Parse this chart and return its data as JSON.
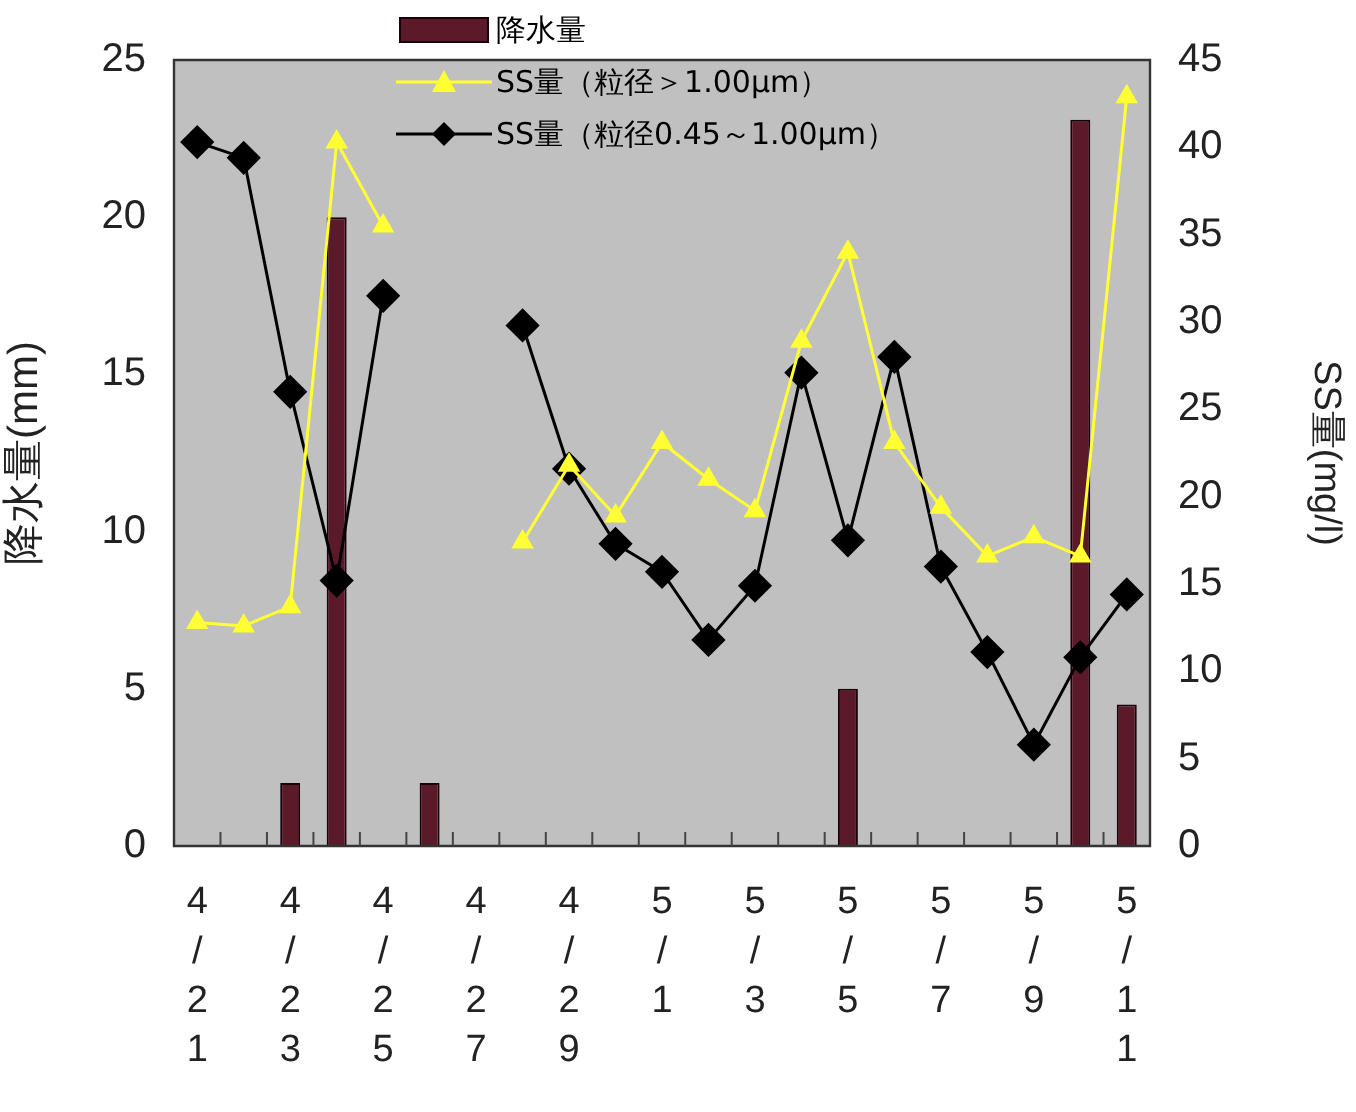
{
  "chart_data": {
    "type": "bar",
    "ylabel": "降水量(mm)",
    "y2label": "SS量(mg/l)",
    "categories": [
      "4/21",
      null,
      "4/23",
      null,
      "4/25",
      null,
      "4/27",
      null,
      "4/29",
      null,
      "5/1",
      null,
      "5/3",
      null,
      "5/5",
      null,
      "5/7",
      null,
      "5/9",
      null,
      "5/11"
    ],
    "ylim": [
      0,
      25
    ],
    "yticks": [
      0,
      5,
      10,
      15,
      20,
      25
    ],
    "y2lim": [
      0,
      45
    ],
    "y2ticks": [
      0,
      5,
      10,
      15,
      20,
      25,
      30,
      35,
      40,
      45
    ],
    "grid": false,
    "legend": "top",
    "series": [
      {
        "name": "降水量",
        "color": "#5a1a2a",
        "values": [
          null,
          null,
          2,
          20,
          null,
          2,
          null,
          null,
          null,
          null,
          null,
          null,
          null,
          null,
          5,
          null,
          null,
          null,
          null,
          23.1,
          4.5
        ]
      },
      {
        "name": "SS量（粒径＞1.00μm）",
        "type": "line",
        "axis": "y2",
        "marker": "triangle",
        "color": "#ffff33",
        "values": [
          12.8,
          12.6,
          13.7,
          40.3,
          35.5,
          null,
          null,
          17.4,
          21.8,
          18.9,
          23.1,
          21.0,
          19.2,
          28.9,
          34.0,
          23.1,
          19.4,
          16.6,
          17.7,
          16.6,
          42.9
        ]
      },
      {
        "name": "SS量（粒径0.45～1.00μm）",
        "type": "line",
        "axis": "y2",
        "marker": "diamond",
        "color": "#000000",
        "values": [
          40.3,
          39.4,
          26.0,
          15.2,
          31.5,
          null,
          null,
          29.8,
          21.6,
          17.3,
          15.7,
          11.8,
          14.9,
          27.1,
          17.5,
          28.0,
          16.0,
          11.1,
          5.8,
          10.8,
          14.4
        ]
      }
    ]
  }
}
